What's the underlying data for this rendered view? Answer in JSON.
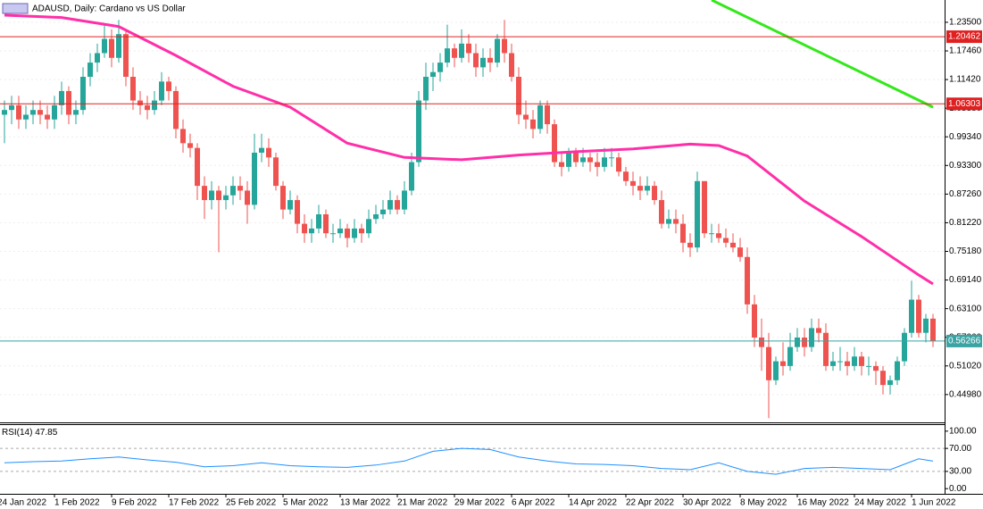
{
  "chart_data": {
    "type": "candlestick",
    "title": "ADAUSD, Daily:  Cardano vs US Dollar",
    "up_color": "#26a69a",
    "down_color": "#ef5350",
    "x": [
      "24 Jan 2022",
      "25 Jan 2022",
      "26 Jan 2022",
      "27 Jan 2022",
      "28 Jan 2022",
      "29 Jan 2022",
      "30 Jan 2022",
      "31 Jan 2022",
      "1 Feb 2022",
      "2 Feb 2022",
      "3 Feb 2022",
      "4 Feb 2022",
      "5 Feb 2022",
      "6 Feb 2022",
      "7 Feb 2022",
      "8 Feb 2022",
      "9 Feb 2022",
      "10 Feb 2022",
      "11 Feb 2022",
      "12 Feb 2022",
      "13 Feb 2022",
      "14 Feb 2022",
      "15 Feb 2022",
      "16 Feb 2022",
      "17 Feb 2022",
      "18 Feb 2022",
      "19 Feb 2022",
      "20 Feb 2022",
      "21 Feb 2022",
      "22 Feb 2022",
      "23 Feb 2022",
      "24 Feb 2022",
      "25 Feb 2022",
      "26 Feb 2022",
      "27 Feb 2022",
      "28 Feb 2022",
      "1 Mar 2022",
      "2 Mar 2022",
      "3 Mar 2022",
      "4 Mar 2022",
      "5 Mar 2022",
      "6 Mar 2022",
      "7 Mar 2022",
      "8 Mar 2022",
      "9 Mar 2022",
      "10 Mar 2022",
      "11 Mar 2022",
      "12 Mar 2022",
      "13 Mar 2022",
      "14 Mar 2022",
      "15 Mar 2022",
      "16 Mar 2022",
      "17 Mar 2022",
      "18 Mar 2022",
      "19 Mar 2022",
      "20 Mar 2022",
      "21 Mar 2022",
      "22 Mar 2022",
      "23 Mar 2022",
      "24 Mar 2022",
      "25 Mar 2022",
      "26 Mar 2022",
      "27 Mar 2022",
      "28 Mar 2022",
      "29 Mar 2022",
      "30 Mar 2022",
      "31 Mar 2022",
      "1 Apr 2022",
      "2 Apr 2022",
      "3 Apr 2022",
      "4 Apr 2022",
      "5 Apr 2022",
      "6 Apr 2022",
      "7 Apr 2022",
      "8 Apr 2022",
      "9 Apr 2022",
      "10 Apr 2022",
      "11 Apr 2022",
      "12 Apr 2022",
      "13 Apr 2022",
      "14 Apr 2022",
      "15 Apr 2022",
      "16 Apr 2022",
      "17 Apr 2022",
      "18 Apr 2022",
      "19 Apr 2022",
      "20 Apr 2022",
      "21 Apr 2022",
      "22 Apr 2022",
      "23 Apr 2022",
      "24 Apr 2022",
      "25 Apr 2022",
      "26 Apr 2022",
      "27 Apr 2022",
      "28 Apr 2022",
      "29 Apr 2022",
      "30 Apr 2022",
      "1 May 2022",
      "2 May 2022",
      "3 May 2022",
      "4 May 2022",
      "5 May 2022",
      "6 May 2022",
      "7 May 2022",
      "8 May 2022",
      "9 May 2022",
      "10 May 2022",
      "11 May 2022",
      "12 May 2022",
      "13 May 2022",
      "14 May 2022",
      "15 May 2022",
      "16 May 2022",
      "17 May 2022",
      "18 May 2022",
      "19 May 2022",
      "20 May 2022",
      "21 May 2022",
      "22 May 2022",
      "23 May 2022",
      "24 May 2022",
      "25 May 2022",
      "26 May 2022",
      "27 May 2022",
      "28 May 2022",
      "29 May 2022",
      "30 May 2022",
      "31 May 2022",
      "1 Jun 2022",
      "2 Jun 2022",
      "3 Jun 2022"
    ],
    "open": [
      1.04,
      1.05,
      1.06,
      1.03,
      1.04,
      1.05,
      1.04,
      1.03,
      1.06,
      1.09,
      1.04,
      1.05,
      1.12,
      1.15,
      1.17,
      1.2,
      1.16,
      1.21,
      1.12,
      1.07,
      1.06,
      1.05,
      1.07,
      1.11,
      1.09,
      1.01,
      0.98,
      0.97,
      0.89,
      0.86,
      0.88,
      0.86,
      0.87,
      0.89,
      0.88,
      0.85,
      0.96,
      0.97,
      0.95,
      0.89,
      0.84,
      0.86,
      0.81,
      0.79,
      0.8,
      0.83,
      0.79,
      0.79,
      0.8,
      0.78,
      0.8,
      0.79,
      0.82,
      0.83,
      0.84,
      0.86,
      0.84,
      0.88,
      0.94,
      1.07,
      1.12,
      1.13,
      1.15,
      1.18,
      1.16,
      1.19,
      1.17,
      1.14,
      1.16,
      1.15,
      1.2,
      1.17,
      1.12,
      1.04,
      1.03,
      1.01,
      1.06,
      1.02,
      0.94,
      0.93,
      0.96,
      0.94,
      0.95,
      0.94,
      0.93,
      0.95,
      0.95,
      0.92,
      0.9,
      0.89,
      0.88,
      0.89,
      0.86,
      0.81,
      0.82,
      0.81,
      0.77,
      0.76,
      0.9,
      0.79,
      0.79,
      0.78,
      0.77,
      0.76,
      0.74,
      0.64,
      0.57,
      0.55,
      0.48,
      0.52,
      0.51,
      0.55,
      0.57,
      0.55,
      0.59,
      0.58,
      0.51,
      0.52,
      0.52,
      0.51,
      0.53,
      0.51,
      0.51,
      0.5,
      0.47,
      0.48,
      0.52,
      0.58,
      0.65,
      0.58,
      0.61
    ],
    "high": [
      1.07,
      1.08,
      1.08,
      1.06,
      1.07,
      1.07,
      1.06,
      1.08,
      1.11,
      1.1,
      1.07,
      1.14,
      1.17,
      1.19,
      1.23,
      1.22,
      1.24,
      1.22,
      1.14,
      1.09,
      1.08,
      1.09,
      1.13,
      1.12,
      1.1,
      1.03,
      1.0,
      0.98,
      0.91,
      0.9,
      0.89,
      0.89,
      0.91,
      0.91,
      0.9,
      1.0,
      1.0,
      0.99,
      0.96,
      0.9,
      0.88,
      0.87,
      0.83,
      0.82,
      0.85,
      0.84,
      0.81,
      0.82,
      0.81,
      0.82,
      0.81,
      0.84,
      0.85,
      0.86,
      0.88,
      0.87,
      0.9,
      0.96,
      1.09,
      1.15,
      1.15,
      1.17,
      1.23,
      1.19,
      1.22,
      1.21,
      1.19,
      1.18,
      1.18,
      1.21,
      1.24,
      1.19,
      1.14,
      1.07,
      1.05,
      1.07,
      1.07,
      1.03,
      0.96,
      0.97,
      0.97,
      0.97,
      0.96,
      0.96,
      0.97,
      0.97,
      0.96,
      0.93,
      0.92,
      0.91,
      0.91,
      0.9,
      0.88,
      0.84,
      0.84,
      0.83,
      0.79,
      0.92,
      0.9,
      0.81,
      0.81,
      0.8,
      0.79,
      0.78,
      0.76,
      0.66,
      0.61,
      0.58,
      0.53,
      0.56,
      0.58,
      0.59,
      0.59,
      0.61,
      0.61,
      0.6,
      0.54,
      0.55,
      0.54,
      0.55,
      0.54,
      0.53,
      0.52,
      0.51,
      0.49,
      0.53,
      0.59,
      0.69,
      0.66,
      0.62,
      0.62
    ],
    "low": [
      0.98,
      1.02,
      1.01,
      1.01,
      1.02,
      1.02,
      1.01,
      1.01,
      1.04,
      1.02,
      1.02,
      1.04,
      1.1,
      1.13,
      1.16,
      1.14,
      1.15,
      1.1,
      1.05,
      1.04,
      1.03,
      1.04,
      1.06,
      1.07,
      0.99,
      0.96,
      0.95,
      0.86,
      0.82,
      0.84,
      0.75,
      0.84,
      0.85,
      0.86,
      0.81,
      0.84,
      0.94,
      0.93,
      0.88,
      0.82,
      0.83,
      0.79,
      0.77,
      0.77,
      0.79,
      0.78,
      0.77,
      0.78,
      0.76,
      0.77,
      0.77,
      0.78,
      0.81,
      0.82,
      0.83,
      0.83,
      0.83,
      0.87,
      0.93,
      1.05,
      1.09,
      1.11,
      1.14,
      1.14,
      1.15,
      1.15,
      1.12,
      1.12,
      1.13,
      1.14,
      1.15,
      1.11,
      1.02,
      1.01,
      0.99,
      1.0,
      1.0,
      0.93,
      0.91,
      0.92,
      0.93,
      0.93,
      0.92,
      0.91,
      0.92,
      0.93,
      0.91,
      0.89,
      0.87,
      0.86,
      0.87,
      0.85,
      0.8,
      0.8,
      0.79,
      0.75,
      0.74,
      0.75,
      0.78,
      0.77,
      0.77,
      0.76,
      0.75,
      0.73,
      0.62,
      0.55,
      0.5,
      0.4,
      0.47,
      0.49,
      0.5,
      0.54,
      0.53,
      0.54,
      0.56,
      0.5,
      0.5,
      0.5,
      0.49,
      0.5,
      0.49,
      0.49,
      0.47,
      0.45,
      0.45,
      0.47,
      0.51,
      0.57,
      0.57,
      0.56,
      0.55
    ],
    "close": [
      1.05,
      1.06,
      1.03,
      1.04,
      1.05,
      1.04,
      1.03,
      1.06,
      1.09,
      1.04,
      1.05,
      1.12,
      1.15,
      1.17,
      1.2,
      1.16,
      1.21,
      1.12,
      1.07,
      1.06,
      1.05,
      1.07,
      1.11,
      1.09,
      1.01,
      0.98,
      0.97,
      0.89,
      0.86,
      0.88,
      0.86,
      0.87,
      0.89,
      0.88,
      0.85,
      0.96,
      0.97,
      0.95,
      0.89,
      0.84,
      0.86,
      0.81,
      0.79,
      0.8,
      0.83,
      0.79,
      0.79,
      0.8,
      0.78,
      0.8,
      0.79,
      0.82,
      0.83,
      0.84,
      0.86,
      0.84,
      0.88,
      0.94,
      1.07,
      1.12,
      1.13,
      1.15,
      1.18,
      1.16,
      1.19,
      1.17,
      1.14,
      1.16,
      1.15,
      1.2,
      1.17,
      1.12,
      1.04,
      1.03,
      1.01,
      1.06,
      1.02,
      0.94,
      0.93,
      0.96,
      0.94,
      0.95,
      0.94,
      0.93,
      0.95,
      0.95,
      0.92,
      0.9,
      0.89,
      0.88,
      0.89,
      0.86,
      0.81,
      0.82,
      0.81,
      0.77,
      0.76,
      0.9,
      0.79,
      0.79,
      0.78,
      0.77,
      0.76,
      0.74,
      0.64,
      0.57,
      0.55,
      0.48,
      0.52,
      0.51,
      0.55,
      0.57,
      0.55,
      0.59,
      0.58,
      0.51,
      0.52,
      0.52,
      0.51,
      0.53,
      0.51,
      0.51,
      0.5,
      0.47,
      0.48,
      0.52,
      0.58,
      0.65,
      0.58,
      0.61,
      0.563
    ],
    "ma": {
      "color": "#ff2fa8",
      "x": [
        "24 Jan 2022",
        "1 Feb 2022",
        "9 Feb 2022",
        "17 Feb 2022",
        "25 Feb 2022",
        "5 Mar 2022",
        "13 Mar 2022",
        "21 Mar 2022",
        "29 Mar 2022",
        "6 Apr 2022",
        "14 Apr 2022",
        "22 Apr 2022",
        "30 Apr 2022",
        "4 May 2022",
        "8 May 2022",
        "16 May 2022",
        "24 May 2022",
        "1 Jun 2022",
        "3 Jun 2022"
      ],
      "values": [
        1.25,
        1.245,
        1.226,
        1.165,
        1.1,
        1.056,
        0.98,
        0.95,
        0.945,
        0.955,
        0.962,
        0.968,
        0.978,
        0.975,
        0.953,
        0.858,
        0.783,
        0.702,
        0.683
      ]
    },
    "trendline": {
      "color": "#33e81a",
      "x": [
        "3 May 2022",
        "3 Jun 2022"
      ],
      "values": [
        1.282,
        1.056
      ]
    },
    "levels": [
      {
        "value": 1.20462,
        "color": "#e02020"
      },
      {
        "value": 1.06303,
        "color": "#e02020"
      },
      {
        "value": 0.56266,
        "color": "#3aa3a3"
      }
    ],
    "ylim": [
      0.393,
      1.282
    ],
    "yticks": [
      {
        "value": 1.235,
        "label": "1.23500"
      },
      {
        "value": 1.1746,
        "label": "1.17460"
      },
      {
        "value": 1.1142,
        "label": "1.11420"
      },
      {
        "value": 1.0538,
        "label": "1.05380"
      },
      {
        "value": 0.9934,
        "label": "0.99340"
      },
      {
        "value": 0.933,
        "label": "0.93300"
      },
      {
        "value": 0.8726,
        "label": "0.87260"
      },
      {
        "value": 0.8122,
        "label": "0.81220"
      },
      {
        "value": 0.7518,
        "label": "0.75180"
      },
      {
        "value": 0.6914,
        "label": "0.69140"
      },
      {
        "value": 0.631,
        "label": "0.63100"
      },
      {
        "value": 0.5706,
        "label": "0.57060"
      },
      {
        "value": 0.5102,
        "label": "0.51020"
      },
      {
        "value": 0.4498,
        "label": "0.44980"
      }
    ],
    "rsi": {
      "title": "RSI(14)",
      "last": 47.85,
      "color": "#1e90ff",
      "x": [
        "24 Jan 2022",
        "28 Jan 2022",
        "1 Feb 2022",
        "5 Feb 2022",
        "9 Feb 2022",
        "13 Feb 2022",
        "17 Feb 2022",
        "21 Feb 2022",
        "25 Feb 2022",
        "1 Mar 2022",
        "5 Mar 2022",
        "9 Mar 2022",
        "13 Mar 2022",
        "17 Mar 2022",
        "21 Mar 2022",
        "25 Mar 2022",
        "29 Mar 2022",
        "2 Apr 2022",
        "6 Apr 2022",
        "10 Apr 2022",
        "14 Apr 2022",
        "18 Apr 2022",
        "22 Apr 2022",
        "26 Apr 2022",
        "30 Apr 2022",
        "4 May 2022",
        "8 May 2022",
        "12 May 2022",
        "16 May 2022",
        "20 May 2022",
        "24 May 2022",
        "28 May 2022",
        "1 Jun 2022",
        "3 Jun 2022"
      ],
      "values": [
        45,
        47,
        48,
        52,
        55,
        50,
        46,
        38,
        40,
        45,
        40,
        38,
        37,
        41,
        48,
        65,
        70,
        68,
        55,
        48,
        43,
        42,
        40,
        35,
        33,
        45,
        30,
        25,
        35,
        37,
        35,
        33,
        52,
        47.85
      ],
      "ylim": [
        -9,
        110.6
      ],
      "yticks": [
        {
          "value": 100,
          "label": "100.00"
        },
        {
          "value": 70,
          "label": "70.00"
        },
        {
          "value": 30,
          "label": "30.00"
        },
        {
          "value": 0,
          "label": "0.00"
        }
      ],
      "levels": [
        70,
        30
      ]
    }
  }
}
